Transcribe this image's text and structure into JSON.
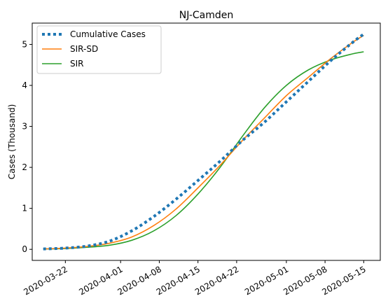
{
  "chart_data": {
    "type": "line",
    "title": "NJ-Camden",
    "xlabel": "",
    "ylabel": "Cases (Thousand)",
    "xlim": [
      "2020-03-16",
      "2020-05-18"
    ],
    "ylim": [
      -0.27,
      5.52
    ],
    "xticks": [
      "2020-03-22",
      "2020-04-01",
      "2020-04-08",
      "2020-04-15",
      "2020-04-22",
      "2020-05-01",
      "2020-05-08",
      "2020-05-15"
    ],
    "yticks": [
      0,
      1,
      2,
      3,
      4,
      5
    ],
    "grid": false,
    "legend_position": "top-left",
    "x": [
      "2020-03-18",
      "2020-03-22",
      "2020-03-26",
      "2020-03-30",
      "2020-04-03",
      "2020-04-07",
      "2020-04-11",
      "2020-04-15",
      "2020-04-19",
      "2020-04-23",
      "2020-04-27",
      "2020-05-01",
      "2020-05-05",
      "2020-05-09",
      "2020-05-13",
      "2020-05-15"
    ],
    "series": [
      {
        "name": "Cumulative Cases",
        "color": "#1f77b4",
        "style": "dotted",
        "values": [
          0.01,
          0.03,
          0.08,
          0.2,
          0.45,
          0.8,
          1.22,
          1.68,
          2.15,
          2.65,
          3.1,
          3.6,
          4.1,
          4.6,
          5.05,
          5.25
        ]
      },
      {
        "name": "SIR-SD",
        "color": "#ff7f0e",
        "style": "solid",
        "values": [
          0.01,
          0.03,
          0.07,
          0.15,
          0.3,
          0.58,
          0.98,
          1.5,
          2.05,
          2.65,
          3.2,
          3.75,
          4.2,
          4.65,
          5.05,
          5.22
        ]
      },
      {
        "name": "SIR",
        "color": "#2ca02c",
        "style": "solid",
        "values": [
          0.01,
          0.02,
          0.05,
          0.1,
          0.22,
          0.45,
          0.82,
          1.35,
          2.0,
          2.75,
          3.45,
          4.0,
          4.38,
          4.62,
          4.77,
          4.82
        ]
      }
    ]
  }
}
